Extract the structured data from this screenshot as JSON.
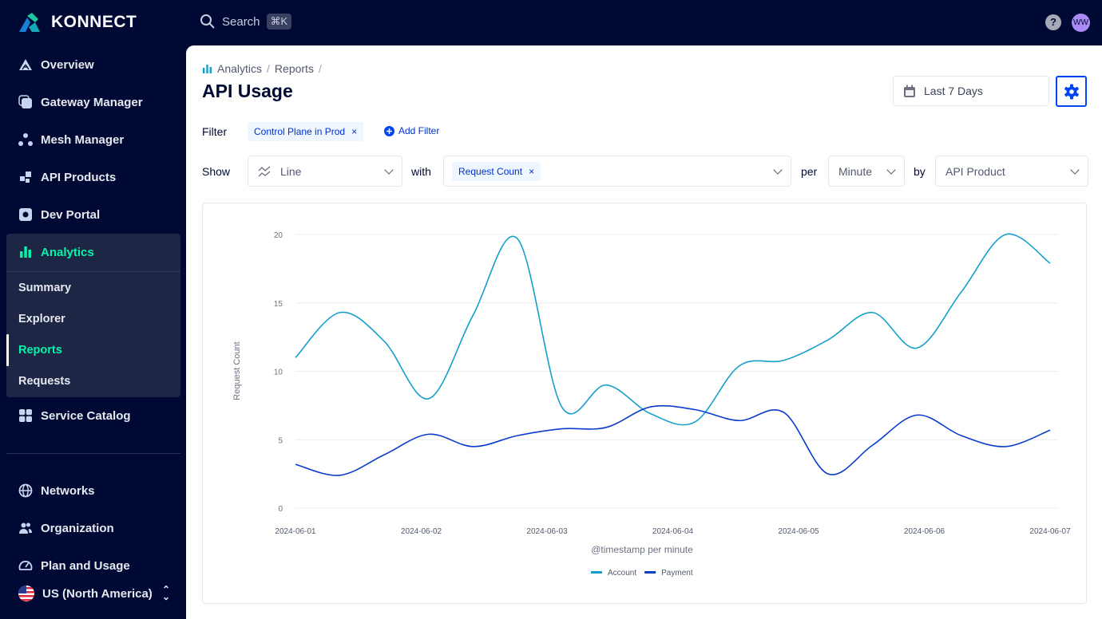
{
  "app": {
    "name": "KONNECT",
    "search_label": "Search",
    "search_shortcut": "⌘K",
    "help_label": "?",
    "avatar_initials": "WW"
  },
  "sidebar": {
    "items": [
      {
        "label": "Overview",
        "icon": "overview-icon"
      },
      {
        "label": "Gateway Manager",
        "icon": "gateway-icon"
      },
      {
        "label": "Mesh Manager",
        "icon": "mesh-icon"
      },
      {
        "label": "API Products",
        "icon": "api-products-icon"
      },
      {
        "label": "Dev Portal",
        "icon": "dev-portal-icon"
      },
      {
        "label": "Analytics",
        "icon": "analytics-icon",
        "active": true
      },
      {
        "label": "Service Catalog",
        "icon": "service-catalog-icon"
      },
      {
        "label": "Networks",
        "icon": "globe-icon"
      },
      {
        "label": "Organization",
        "icon": "users-icon"
      },
      {
        "label": "Plan and Usage",
        "icon": "gauge-icon"
      }
    ],
    "analytics_sub": [
      {
        "label": "Summary"
      },
      {
        "label": "Explorer"
      },
      {
        "label": "Reports",
        "active": true
      },
      {
        "label": "Requests"
      }
    ],
    "region": "US (North America)"
  },
  "breadcrumb": [
    "Analytics",
    "/",
    "Reports",
    "/"
  ],
  "page": {
    "title": "API Usage",
    "date_range": "Last 7 Days"
  },
  "filter": {
    "label": "Filter",
    "chips": [
      "Control Plane in Prod"
    ],
    "add_label": "Add Filter"
  },
  "query": {
    "show_label": "Show",
    "chart_type": "Line",
    "with_label": "with",
    "metrics": [
      "Request Count"
    ],
    "per_label": "per",
    "granularity": "Minute",
    "by_label": "by",
    "dimension": "API Product"
  },
  "colors": {
    "accent": "#00f5a8",
    "primary": "#0044f4",
    "account": "#169fcc",
    "payment": "#0a3ccc",
    "nav_bg": "#000933"
  },
  "chart_data": {
    "type": "line",
    "xlabel": "@timestamp per minute",
    "ylabel": "Request Count",
    "ylim": [
      0,
      20
    ],
    "yticks": [
      0,
      5,
      10,
      15,
      20
    ],
    "xticks": [
      "2024-06-01",
      "2024-06-02",
      "2024-06-03",
      "2024-06-04",
      "2024-06-05",
      "2024-06-06",
      "2024-06-07"
    ],
    "grid": true,
    "legend": "bottom",
    "x": [
      "2024-06-01T00:00",
      "2024-06-01T08:28",
      "2024-06-01T16:56",
      "2024-06-02T01:25",
      "2024-06-02T09:53",
      "2024-06-02T18:21",
      "2024-06-03T02:49",
      "2024-06-03T11:17",
      "2024-06-03T19:46",
      "2024-06-04T04:14",
      "2024-06-04T12:42",
      "2024-06-04T21:10",
      "2024-06-05T05:38",
      "2024-06-05T14:07",
      "2024-06-05T22:35",
      "2024-06-06T07:03",
      "2024-06-06T15:31",
      "2024-06-07T00:00"
    ],
    "series": [
      {
        "name": "Account",
        "color": "#169fcc",
        "values": [
          11.0,
          14.3,
          12.2,
          8.0,
          14.1,
          19.7,
          7.4,
          9.0,
          6.9,
          6.3,
          10.4,
          10.8,
          12.3,
          14.3,
          11.7,
          15.8,
          20.0,
          17.9
        ]
      },
      {
        "name": "Payment",
        "color": "#0a3ccc",
        "values": [
          3.2,
          2.4,
          3.9,
          5.4,
          4.5,
          5.3,
          5.8,
          5.9,
          7.4,
          7.2,
          6.4,
          7.0,
          2.5,
          4.6,
          6.8,
          5.3,
          4.5,
          5.7
        ]
      }
    ]
  }
}
